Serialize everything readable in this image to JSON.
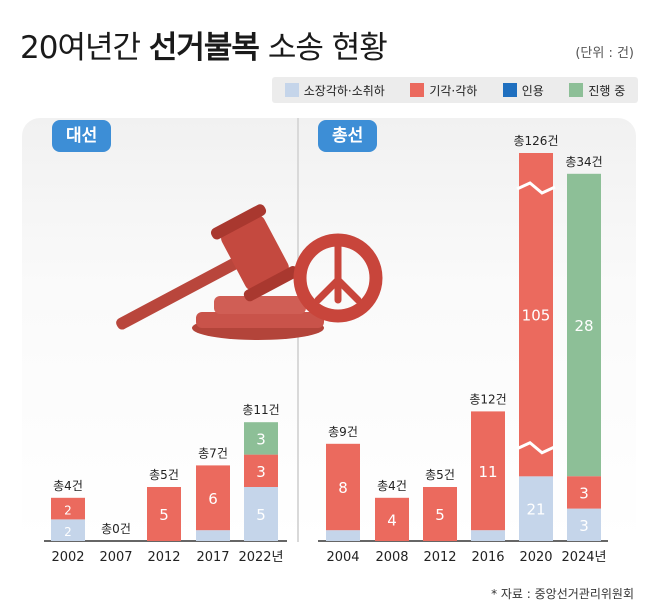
{
  "title": {
    "normal": "20여년간 ",
    "bold": "선거불복",
    "rest": " 소송 현황"
  },
  "unit": "(단위 : 건)",
  "source": "* 자료 : 중앙선거관리위원회",
  "legend": [
    {
      "label": "소장각하·소취하",
      "color": "#c5d5ea"
    },
    {
      "label": "기각·각하",
      "color": "#eb6a5e"
    },
    {
      "label": "인용",
      "color": "#1f6fbf"
    },
    {
      "label": "진행 중",
      "color": "#8dbf97"
    }
  ],
  "chart_data": [
    {
      "type": "bar",
      "title": "대선",
      "categories": [
        "2002",
        "2007",
        "2012",
        "2017",
        "2022년"
      ],
      "series": [
        {
          "name": "소장각하·소취하",
          "values": [
            2,
            0,
            0,
            1,
            5
          ]
        },
        {
          "name": "기각·각하",
          "values": [
            2,
            0,
            5,
            6,
            3
          ]
        },
        {
          "name": "인용",
          "values": [
            0,
            0,
            0,
            0,
            0
          ]
        },
        {
          "name": "진행 중",
          "values": [
            0,
            0,
            0,
            0,
            3
          ]
        }
      ],
      "totals": [
        "총4건",
        "총0건",
        "총5건",
        "총7건",
        "총11건"
      ]
    },
    {
      "type": "bar",
      "title": "총선",
      "categories": [
        "2004",
        "2008",
        "2012",
        "2016",
        "2020",
        "2024년"
      ],
      "series": [
        {
          "name": "소장각하·소취하",
          "values": [
            1,
            0,
            0,
            1,
            21,
            3
          ]
        },
        {
          "name": "기각·각하",
          "values": [
            8,
            4,
            5,
            11,
            105,
            3
          ]
        },
        {
          "name": "인용",
          "values": [
            0,
            0,
            0,
            0,
            0,
            0
          ]
        },
        {
          "name": "진행 중",
          "values": [
            0,
            0,
            0,
            0,
            0,
            28
          ]
        }
      ],
      "totals": [
        "총9건",
        "총4건",
        "총5건",
        "총12건",
        "총126건",
        "총34건"
      ]
    }
  ]
}
